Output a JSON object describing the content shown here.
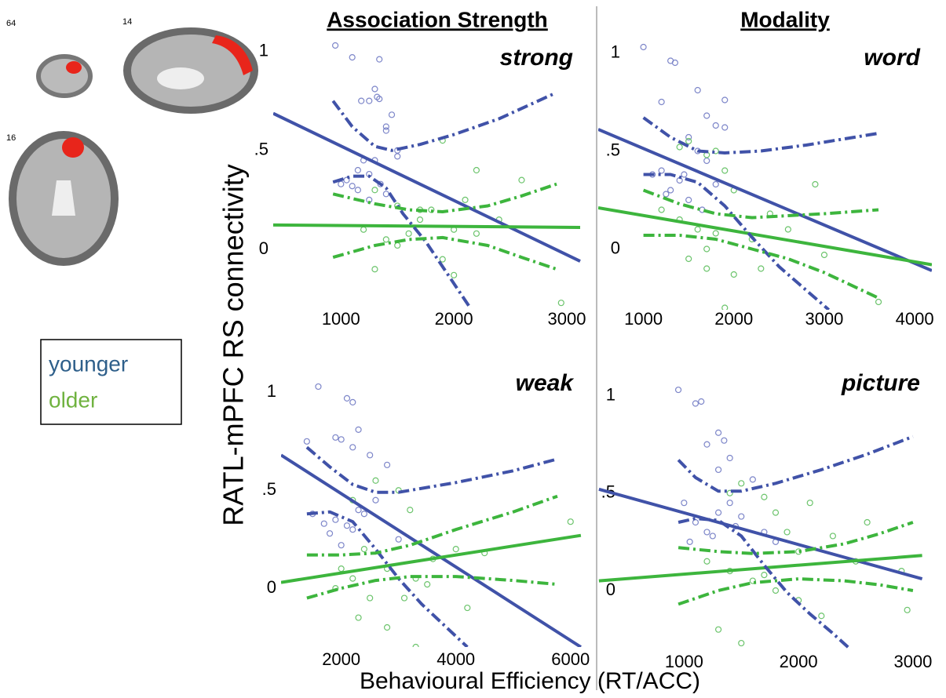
{
  "headers": [
    "Association Strength",
    "Modality"
  ],
  "y_label": "RATL-mPFC RS connectivity",
  "x_label": "Behavioural Efficiency (RT/ACC)",
  "brain_slices": [
    "64",
    "14",
    "16"
  ],
  "legend": [
    {
      "label": "younger",
      "color": "#2e5f8a"
    },
    {
      "label": "older",
      "color": "#6fb23f"
    }
  ],
  "chart_data": [
    {
      "type": "scatter",
      "title": "strong",
      "xlim": [
        400,
        3160
      ],
      "ylim": [
        -0.305,
        1.22
      ],
      "xticks": [
        1000,
        2000,
        3000
      ],
      "yticks": [
        0,
        {
          "value": 0.5,
          "label": ".5"
        },
        1
      ],
      "series": [
        {
          "color": "#7d86c9",
          "x": [
            950,
            1100,
            1340,
            1300,
            1320,
            1340,
            1250,
            1180,
            1450,
            1400,
            1400,
            1500,
            1000,
            1050,
            1100,
            1150,
            1200,
            1250,
            1300,
            1350,
            1400,
            1250,
            1500,
            1150
          ],
          "values": [
            1.03,
            0.97,
            0.96,
            0.81,
            0.77,
            0.76,
            0.75,
            0.75,
            0.68,
            0.62,
            0.6,
            0.47,
            0.33,
            0.35,
            0.32,
            0.4,
            0.45,
            0.38,
            0.45,
            0.33,
            0.28,
            0.25,
            0.5,
            0.3
          ]
        },
        {
          "color": "#6cc46c",
          "x": [
            1300,
            1500,
            1700,
            1900,
            2100,
            2200,
            1200,
            1400,
            1600,
            1800,
            2000,
            2200,
            2400,
            2600,
            1300,
            1900,
            2950,
            2000,
            1500,
            1700
          ],
          "values": [
            0.3,
            0.22,
            0.2,
            0.55,
            0.25,
            0.4,
            0.1,
            0.05,
            0.08,
            0.2,
            -0.13,
            0.08,
            0.15,
            0.35,
            -0.1,
            -0.05,
            -0.27,
            0.1,
            0.02,
            0.15
          ]
        }
      ],
      "fits": [
        {
          "color": "#4052a8",
          "style": "solid",
          "x": [
            400,
            3118
          ],
          "values": [
            0.687,
            -0.06
          ]
        },
        {
          "color": "#3db53d",
          "style": "solid",
          "x": [
            400,
            3118
          ],
          "values": [
            0.123,
            0.111
          ]
        },
        {
          "color": "#4052a8",
          "style": "dashdot",
          "x": [
            930,
            1100,
            1300,
            1450,
            1700,
            2000,
            2400,
            2900
          ],
          "values": [
            0.75,
            0.62,
            0.52,
            0.5,
            0.53,
            0.58,
            0.66,
            0.79
          ]
        },
        {
          "color": "#4052a8",
          "style": "dashdot",
          "x": [
            930,
            1100,
            1250,
            1400,
            1550,
            1750,
            1950,
            2150
          ],
          "values": [
            0.34,
            0.37,
            0.37,
            0.31,
            0.18,
            0.04,
            -0.13,
            -0.3
          ]
        },
        {
          "color": "#3db53d",
          "style": "dashdot",
          "x": [
            930,
            1300,
            1600,
            1900,
            2300,
            2600,
            2910
          ],
          "values": [
            0.28,
            0.23,
            0.2,
            0.19,
            0.22,
            0.27,
            0.33
          ]
        },
        {
          "color": "#3db53d",
          "style": "dashdot",
          "x": [
            930,
            1300,
            1600,
            1900,
            2300,
            2600,
            2910
          ],
          "values": [
            -0.04,
            0.02,
            0.05,
            0.06,
            0.02,
            -0.04,
            -0.1
          ]
        }
      ]
    },
    {
      "type": "scatter",
      "title": "word",
      "xlim": [
        500,
        4190
      ],
      "ylim": [
        -0.31,
        1.15
      ],
      "xticks": [
        1000,
        2000,
        3000,
        4000
      ],
      "yticks": [
        0,
        {
          "value": 0.5,
          "label": ".5"
        },
        1
      ],
      "series": [
        {
          "color": "#7d86c9",
          "x": [
            1000,
            1300,
            1350,
            1600,
            1900,
            1700,
            1800,
            1500,
            1600,
            1700,
            1100,
            1200,
            1300,
            1400,
            1500,
            1800,
            1250,
            1450,
            1650,
            1200,
            1900
          ],
          "values": [
            1.03,
            0.96,
            0.95,
            0.81,
            0.76,
            0.68,
            0.63,
            0.57,
            0.5,
            0.45,
            0.38,
            0.4,
            0.3,
            0.35,
            0.25,
            0.33,
            0.28,
            0.38,
            0.2,
            0.75,
            0.62
          ]
        },
        {
          "color": "#6cc46c",
          "x": [
            1400,
            1500,
            1700,
            1800,
            1900,
            2000,
            1200,
            1400,
            1600,
            1800,
            2000,
            2200,
            2400,
            2600,
            2900,
            1500,
            1700,
            1900,
            3000,
            3600,
            1700,
            2300
          ],
          "values": [
            0.52,
            0.55,
            0.48,
            0.5,
            0.4,
            0.3,
            0.2,
            0.15,
            0.1,
            0.08,
            -0.13,
            0.05,
            0.18,
            0.1,
            0.33,
            -0.05,
            -0.1,
            -0.3,
            -0.03,
            -0.27,
            0.0,
            -0.1
          ]
        }
      ],
      "fits": [
        {
          "color": "#4052a8",
          "style": "solid",
          "x": [
            500,
            4190
          ],
          "values": [
            0.61,
            -0.11
          ]
        },
        {
          "color": "#3db53d",
          "style": "solid",
          "x": [
            500,
            4190
          ],
          "values": [
            0.21,
            -0.08
          ]
        },
        {
          "color": "#4052a8",
          "style": "dashdot",
          "x": [
            1000,
            1300,
            1600,
            1900,
            2300,
            2800,
            3600
          ],
          "values": [
            0.67,
            0.57,
            0.5,
            0.49,
            0.5,
            0.53,
            0.59
          ]
        },
        {
          "color": "#4052a8",
          "style": "dashdot",
          "x": [
            1000,
            1300,
            1600,
            1900,
            2200,
            2500,
            2800,
            3050
          ],
          "values": [
            0.38,
            0.38,
            0.34,
            0.22,
            0.06,
            -0.09,
            -0.21,
            -0.31
          ]
        },
        {
          "color": "#3db53d",
          "style": "dashdot",
          "x": [
            1000,
            1400,
            1800,
            2200,
            2600,
            3000,
            3600
          ],
          "values": [
            0.3,
            0.23,
            0.18,
            0.16,
            0.17,
            0.18,
            0.2
          ]
        },
        {
          "color": "#3db53d",
          "style": "dashdot",
          "x": [
            1000,
            1400,
            1800,
            2200,
            2600,
            3000,
            3600
          ],
          "values": [
            0.07,
            0.07,
            0.05,
            0.0,
            -0.05,
            -0.12,
            -0.25
          ]
        }
      ]
    },
    {
      "type": "scatter",
      "title": "weak",
      "xlim": [
        950,
        6250
      ],
      "ylim": [
        -0.3,
        1.29
      ],
      "xticks": [
        2000,
        4000,
        6000
      ],
      "yticks": [
        0,
        {
          "value": 0.5,
          "label": ".5"
        },
        1
      ],
      "series": [
        {
          "color": "#7d86c9",
          "x": [
            1600,
            1900,
            2100,
            2200,
            2300,
            2000,
            2200,
            2500,
            2800,
            1500,
            1700,
            1900,
            2100,
            2300,
            2600,
            3000,
            1800,
            2000,
            2400,
            2200,
            1400
          ],
          "values": [
            1.03,
            0.77,
            0.97,
            0.95,
            0.81,
            0.76,
            0.72,
            0.68,
            0.63,
            0.38,
            0.33,
            0.35,
            0.32,
            0.4,
            0.45,
            0.25,
            0.28,
            0.22,
            0.38,
            0.3,
            0.75
          ]
        },
        {
          "color": "#6cc46c",
          "x": [
            2200,
            2600,
            3000,
            3200,
            2400,
            2800,
            3300,
            3600,
            4000,
            4200,
            2000,
            2500,
            3500,
            4500,
            6000,
            2300,
            2800,
            3300,
            1900,
            2200,
            3100
          ],
          "values": [
            0.45,
            0.55,
            0.5,
            0.4,
            0.2,
            0.1,
            0.05,
            0.15,
            0.2,
            -0.1,
            0.1,
            -0.05,
            0.02,
            0.18,
            0.34,
            -0.15,
            -0.2,
            -0.3,
            0.0,
            0.05,
            -0.05
          ]
        }
      ],
      "fits": [
        {
          "color": "#4052a8",
          "style": "solid",
          "x": [
            950,
            6180
          ],
          "values": [
            0.68,
            -0.3
          ]
        },
        {
          "color": "#3db53d",
          "style": "solid",
          "x": [
            950,
            6180
          ],
          "values": [
            0.03,
            0.27
          ]
        },
        {
          "color": "#4052a8",
          "style": "dashdot",
          "x": [
            1400,
            1800,
            2200,
            2600,
            3000,
            4000,
            5000,
            5770
          ],
          "values": [
            0.72,
            0.62,
            0.53,
            0.49,
            0.49,
            0.54,
            0.6,
            0.66
          ]
        },
        {
          "color": "#4052a8",
          "style": "dashdot",
          "x": [
            1400,
            1800,
            2200,
            2600,
            3000,
            3400,
            3800,
            4200
          ],
          "values": [
            0.38,
            0.39,
            0.34,
            0.2,
            0.05,
            -0.08,
            -0.19,
            -0.3
          ]
        },
        {
          "color": "#3db53d",
          "style": "dashdot",
          "x": [
            1400,
            2000,
            2600,
            3200,
            4000,
            5000,
            5770
          ],
          "values": [
            0.17,
            0.17,
            0.18,
            0.22,
            0.3,
            0.39,
            0.47
          ]
        },
        {
          "color": "#3db53d",
          "style": "dashdot",
          "x": [
            1400,
            2000,
            2600,
            3200,
            4000,
            5000,
            5770
          ],
          "values": [
            -0.05,
            0.0,
            0.04,
            0.06,
            0.06,
            0.04,
            0.02
          ]
        }
      ]
    },
    {
      "type": "scatter",
      "title": "picture",
      "xlim": [
        250,
        3165
      ],
      "ylim": [
        -0.31,
        1.3
      ],
      "xticks": [
        1000,
        2000,
        3000
      ],
      "yticks": [
        0,
        {
          "value": 0.5,
          "label": ".5"
        },
        1
      ],
      "series": [
        {
          "color": "#7d86c9",
          "x": [
            950,
            1100,
            1150,
            1300,
            1350,
            1200,
            1300,
            1400,
            1600,
            1000,
            1100,
            1200,
            1300,
            1400,
            1500,
            1700,
            1800,
            1250,
            1450,
            1050
          ],
          "values": [
            1.03,
            0.96,
            0.97,
            0.81,
            0.77,
            0.75,
            0.62,
            0.68,
            0.57,
            0.45,
            0.35,
            0.3,
            0.4,
            0.45,
            0.38,
            0.3,
            0.25,
            0.28,
            0.33,
            0.25
          ]
        },
        {
          "color": "#6cc46c",
          "x": [
            1400,
            1500,
            1700,
            1800,
            1900,
            2000,
            2100,
            2300,
            2500,
            2600,
            2900,
            1200,
            1400,
            1600,
            1800,
            2000,
            2200,
            1300,
            1500,
            1700,
            2950
          ],
          "values": [
            0.5,
            0.55,
            0.48,
            0.4,
            0.3,
            0.2,
            0.45,
            0.28,
            0.15,
            0.35,
            0.1,
            0.15,
            0.1,
            0.05,
            0.0,
            -0.05,
            -0.13,
            -0.2,
            -0.27,
            0.08,
            -0.1
          ]
        }
      ],
      "fits": [
        {
          "color": "#4052a8",
          "style": "solid",
          "x": [
            256,
            3080
          ],
          "values": [
            0.52,
            0.06
          ]
        },
        {
          "color": "#3db53d",
          "style": "solid",
          "x": [
            256,
            3080
          ],
          "values": [
            0.05,
            0.18
          ]
        },
        {
          "color": "#4052a8",
          "style": "dashdot",
          "x": [
            950,
            1100,
            1300,
            1500,
            1800,
            2200,
            2600,
            3000
          ],
          "values": [
            0.67,
            0.58,
            0.51,
            0.51,
            0.55,
            0.62,
            0.7,
            0.79
          ]
        },
        {
          "color": "#4052a8",
          "style": "dashdot",
          "x": [
            950,
            1100,
            1300,
            1500,
            1700,
            1900,
            2100,
            2300,
            2450
          ],
          "values": [
            0.35,
            0.37,
            0.36,
            0.28,
            0.13,
            -0.01,
            -0.12,
            -0.22,
            -0.3
          ]
        },
        {
          "color": "#3db53d",
          "style": "dashdot",
          "x": [
            950,
            1300,
            1600,
            2000,
            2400,
            2700,
            3000
          ],
          "values": [
            0.22,
            0.2,
            0.19,
            0.2,
            0.24,
            0.29,
            0.35
          ]
        },
        {
          "color": "#3db53d",
          "style": "dashdot",
          "x": [
            950,
            1300,
            1600,
            2000,
            2400,
            2700,
            3000
          ],
          "values": [
            -0.07,
            0.0,
            0.04,
            0.06,
            0.05,
            0.03,
            0.0
          ]
        }
      ]
    }
  ]
}
